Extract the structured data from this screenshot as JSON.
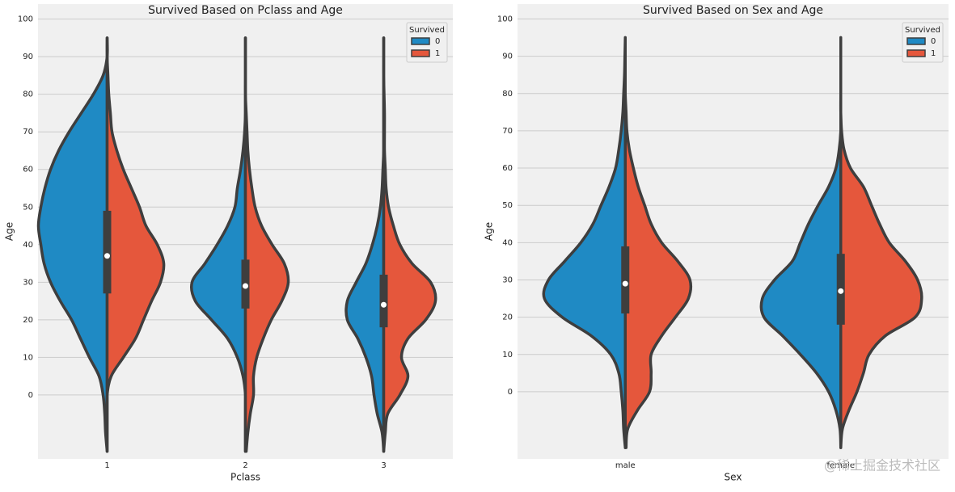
{
  "chart_data": [
    {
      "type": "violin",
      "title": "Survived Based on Pclass and Age",
      "xlabel": "Pclass",
      "ylabel": "Age",
      "categories": [
        "1",
        "2",
        "3"
      ],
      "ylim": [
        -17,
        104
      ],
      "yticks": [
        0,
        10,
        20,
        30,
        40,
        50,
        60,
        70,
        80,
        90,
        100
      ],
      "grid": true,
      "legend_title": "Survived",
      "legend": "upper right",
      "age_grid": [
        -15,
        -10,
        -5,
        0,
        5,
        10,
        15,
        20,
        25,
        30,
        35,
        40,
        45,
        50,
        55,
        60,
        65,
        70,
        75,
        80,
        85,
        90,
        95
      ],
      "series": [
        {
          "name": "0",
          "color": "#1f8ac4",
          "density": [
            [
              0,
              0.02,
              0.03,
              0.05,
              0.1,
              0.22,
              0.33,
              0.44,
              0.58,
              0.7,
              0.78,
              0.82,
              0.85,
              0.82,
              0.77,
              0.7,
              0.6,
              0.47,
              0.32,
              0.17,
              0.05,
              0,
              0
            ],
            [
              0,
              0,
              0,
              0,
              0.03,
              0.1,
              0.22,
              0.42,
              0.62,
              0.66,
              0.5,
              0.35,
              0.22,
              0.13,
              0.1,
              0.06,
              0.03,
              0.01,
              0,
              0,
              0,
              0,
              0
            ],
            [
              0,
              0.02,
              0.08,
              0.12,
              0.15,
              0.22,
              0.32,
              0.45,
              0.45,
              0.34,
              0.22,
              0.14,
              0.08,
              0.04,
              0.02,
              0.01,
              0,
              0,
              0,
              0,
              0,
              0,
              0
            ]
          ]
        },
        {
          "name": "1",
          "color": "#e5573c",
          "density": [
            [
              0,
              0,
              0,
              0,
              0.05,
              0.2,
              0.35,
              0.45,
              0.55,
              0.66,
              0.7,
              0.62,
              0.48,
              0.4,
              0.3,
              0.2,
              0.12,
              0.06,
              0.04,
              0.02,
              0.01,
              0,
              0
            ],
            [
              0.01,
              0.03,
              0.06,
              0.1,
              0.1,
              0.14,
              0.22,
              0.32,
              0.45,
              0.53,
              0.48,
              0.33,
              0.2,
              0.12,
              0.08,
              0.05,
              0.03,
              0.02,
              0.01,
              0,
              0,
              0,
              0
            ],
            [
              0,
              0.02,
              0.05,
              0.2,
              0.3,
              0.22,
              0.3,
              0.52,
              0.64,
              0.58,
              0.35,
              0.2,
              0.12,
              0.06,
              0.03,
              0.02,
              0.01,
              0.01,
              0.01,
              0.005,
              0,
              0,
              0
            ]
          ]
        }
      ],
      "quartiles": [
        [
          27,
          37,
          49
        ],
        [
          23,
          29,
          36
        ],
        [
          18,
          24,
          32
        ]
      ]
    },
    {
      "type": "violin",
      "title": "Survived Based on Sex and Age",
      "xlabel": "Sex",
      "ylabel": "Age",
      "categories": [
        "male",
        "female"
      ],
      "ylim": [
        -18,
        104
      ],
      "yticks": [
        0,
        10,
        20,
        30,
        40,
        50,
        60,
        70,
        80,
        90,
        100
      ],
      "grid": true,
      "legend_title": "Survived",
      "legend": "upper right",
      "age_grid": [
        -15,
        -10,
        -5,
        0,
        5,
        10,
        15,
        20,
        25,
        30,
        35,
        40,
        45,
        50,
        55,
        60,
        65,
        70,
        75,
        80,
        85,
        90,
        95
      ],
      "series": [
        {
          "name": "0",
          "color": "#1f8ac4",
          "density": [
            [
              0,
              0.02,
              0.03,
              0.05,
              0.08,
              0.18,
              0.42,
              0.78,
              1.0,
              0.95,
              0.75,
              0.55,
              0.4,
              0.3,
              0.2,
              0.12,
              0.08,
              0.05,
              0.03,
              0.02,
              0.01,
              0.005,
              0
            ],
            [
              0,
              0.01,
              0.06,
              0.15,
              0.3,
              0.5,
              0.72,
              0.95,
              0.97,
              0.82,
              0.6,
              0.5,
              0.4,
              0.28,
              0.15,
              0.06,
              0.02,
              0,
              0,
              0,
              0,
              0,
              0
            ]
          ]
        },
        {
          "name": "1",
          "color": "#e5573c",
          "density": [
            [
              0.01,
              0.03,
              0.15,
              0.3,
              0.32,
              0.32,
              0.45,
              0.62,
              0.78,
              0.8,
              0.65,
              0.45,
              0.32,
              0.24,
              0.16,
              0.1,
              0.05,
              0.02,
              0.01,
              0,
              0,
              0,
              0
            ],
            [
              0,
              0.02,
              0.1,
              0.2,
              0.28,
              0.35,
              0.55,
              0.92,
              1.0,
              0.95,
              0.8,
              0.6,
              0.48,
              0.38,
              0.28,
              0.12,
              0.04,
              0.01,
              0,
              0,
              0,
              0,
              0
            ]
          ]
        }
      ],
      "quartiles": [
        [
          21,
          29,
          39
        ],
        [
          18,
          27,
          37
        ]
      ]
    }
  ],
  "watermark": "@稀土掘金技术社区"
}
